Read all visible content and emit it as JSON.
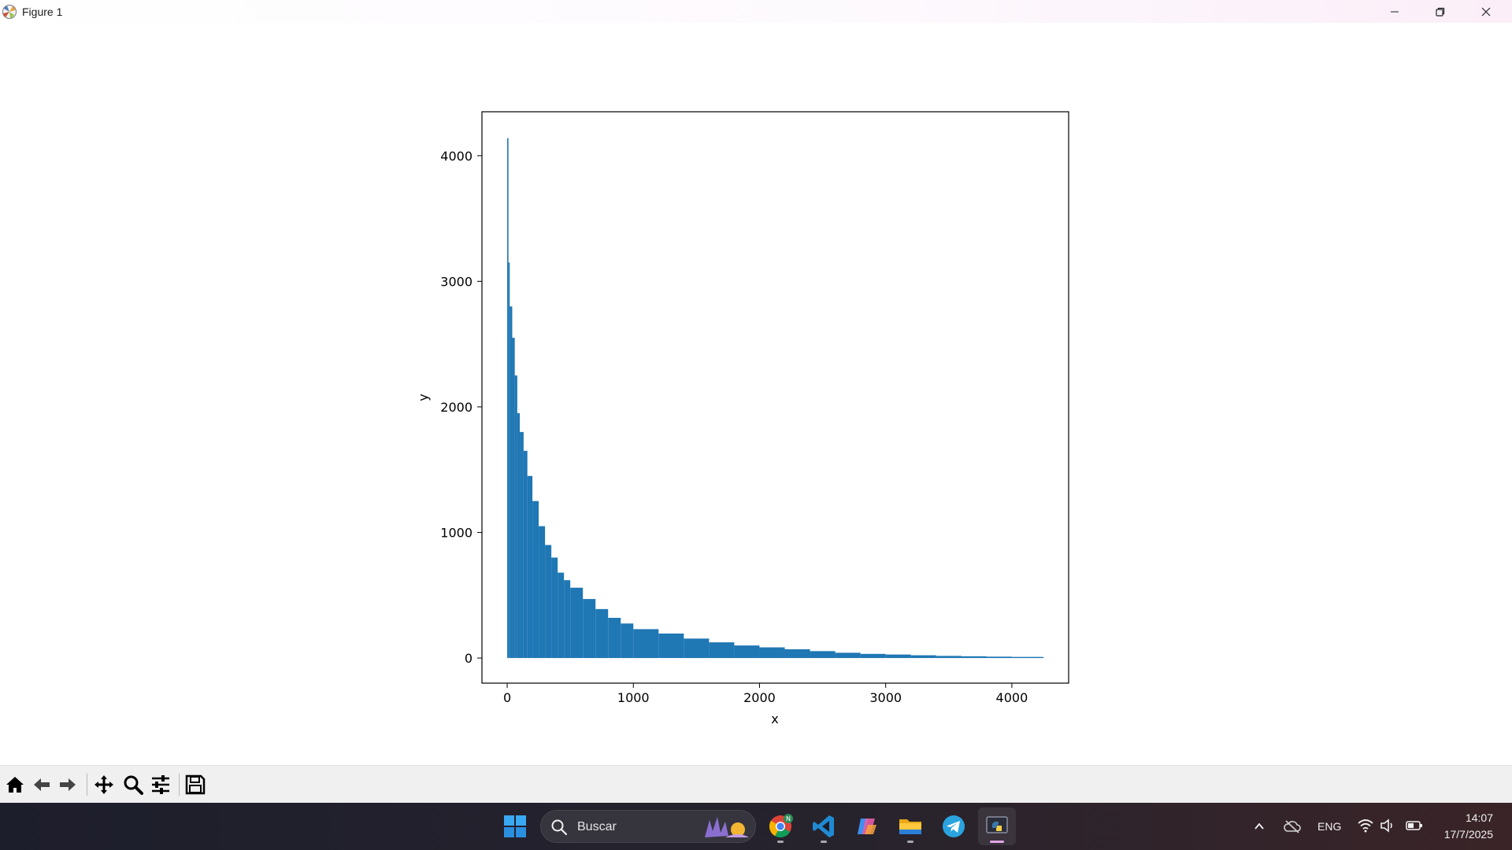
{
  "window": {
    "title": "Figure 1",
    "icon": "matplotlib-icon",
    "controls": [
      "minimize-icon",
      "restore-icon",
      "close-icon"
    ]
  },
  "chart_data": {
    "type": "bar",
    "title": "",
    "xlabel": "x",
    "ylabel": "y",
    "xlim": [
      -200,
      4450
    ],
    "ylim": [
      -200,
      4350
    ],
    "xticks": [
      0,
      1000,
      2000,
      3000,
      4000
    ],
    "yticks": [
      0,
      1000,
      2000,
      3000,
      4000
    ],
    "grid": false,
    "color": "#1f77b4",
    "x": [
      0,
      10,
      20,
      40,
      60,
      80,
      100,
      130,
      160,
      200,
      250,
      300,
      350,
      400,
      450,
      500,
      600,
      700,
      800,
      900,
      1000,
      1200,
      1400,
      1600,
      1800,
      2000,
      2200,
      2400,
      2600,
      2800,
      3000,
      3200,
      3400,
      3600,
      3800,
      4000,
      4240
    ],
    "values": [
      4140,
      3150,
      2800,
      2550,
      2250,
      1950,
      1800,
      1650,
      1450,
      1250,
      1050,
      900,
      800,
      680,
      620,
      560,
      470,
      390,
      320,
      275,
      230,
      195,
      155,
      125,
      100,
      85,
      70,
      55,
      42,
      33,
      28,
      22,
      17,
      14,
      11,
      9,
      8
    ]
  },
  "toolbar": {
    "tools": [
      "home-icon",
      "back-icon",
      "forward-icon",
      "pan-icon",
      "zoom-icon",
      "configure-subplots-icon",
      "save-icon"
    ]
  },
  "taskbar": {
    "search_placeholder": "Buscar",
    "apps": [
      "windows-start-icon",
      "chrome-icon",
      "vscode-icon",
      "copilot-icon",
      "file-explorer-icon",
      "telegram-icon",
      "python-icon"
    ],
    "chrome_badge": "N",
    "language": "ENG",
    "time": "14:07",
    "date": "17/7/2025"
  },
  "colors": {
    "bar": "#1f77b4",
    "taskbar": "#1d1e2c",
    "toolbar": "#f0f0f0"
  }
}
